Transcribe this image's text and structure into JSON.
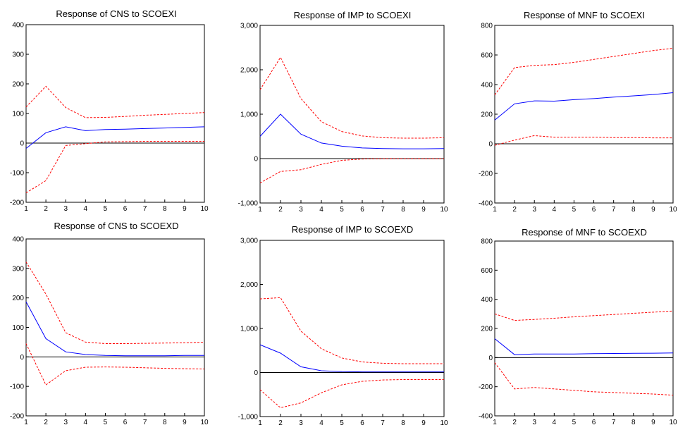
{
  "colors": {
    "response": "#0000ff",
    "band": "#ff0000",
    "axis": "#000000",
    "zero": "#000000"
  },
  "chart_data": [
    {
      "type": "line",
      "title": "Response of CNS to SCOEXI",
      "x": [
        1,
        2,
        3,
        4,
        5,
        6,
        7,
        8,
        9,
        10
      ],
      "ylim": [
        -200,
        400
      ],
      "yticks": [
        -200,
        -100,
        0,
        100,
        200,
        300,
        400
      ],
      "ytick_labels": [
        "-200",
        "-100",
        "0",
        "100",
        "200",
        "300",
        "400"
      ],
      "xtick_labels": [
        "1",
        "2",
        "3",
        "4",
        "5",
        "6",
        "7",
        "8",
        "9",
        "10"
      ],
      "series": [
        {
          "role": "response",
          "values": [
            -18,
            35,
            55,
            42,
            46,
            47,
            49,
            51,
            53,
            55
          ]
        },
        {
          "role": "upper",
          "values": [
            122,
            192,
            120,
            86,
            87,
            90,
            94,
            97,
            100,
            103
          ]
        },
        {
          "role": "lower",
          "values": [
            -168,
            -127,
            -8,
            -2,
            4,
            5,
            6,
            6,
            6,
            6
          ]
        }
      ]
    },
    {
      "type": "line",
      "title": "Response of IMP to SCOEXI",
      "x": [
        1,
        2,
        3,
        4,
        5,
        6,
        7,
        8,
        9,
        10
      ],
      "ylim": [
        -1000,
        3000
      ],
      "yticks": [
        -1000,
        0,
        1000,
        2000,
        3000
      ],
      "ytick_labels": [
        "-1,000",
        "0",
        "1,000",
        "2,000",
        "3,000"
      ],
      "xtick_labels": [
        "1",
        "2",
        "3",
        "4",
        "5",
        "6",
        "7",
        "8",
        "9",
        "10"
      ],
      "series": [
        {
          "role": "response",
          "values": [
            500,
            1000,
            550,
            350,
            280,
            240,
            225,
            220,
            220,
            225
          ]
        },
        {
          "role": "upper",
          "values": [
            1550,
            2280,
            1350,
            830,
            610,
            510,
            470,
            460,
            460,
            470
          ]
        },
        {
          "role": "lower",
          "values": [
            -550,
            -290,
            -250,
            -130,
            -40,
            -10,
            -5,
            -5,
            -5,
            -5
          ]
        }
      ]
    },
    {
      "type": "line",
      "title": "Response of MNF to SCOEXI",
      "x": [
        1,
        2,
        3,
        4,
        5,
        6,
        7,
        8,
        9,
        10
      ],
      "ylim": [
        -400,
        800
      ],
      "yticks": [
        -400,
        -200,
        0,
        200,
        400,
        600,
        800
      ],
      "ytick_labels": [
        "-400",
        "-200",
        "0",
        "200",
        "400",
        "600",
        "800"
      ],
      "xtick_labels": [
        "1",
        "2",
        "3",
        "4",
        "5",
        "6",
        "7",
        "8",
        "9",
        "10"
      ],
      "series": [
        {
          "role": "response",
          "values": [
            160,
            270,
            290,
            288,
            298,
            305,
            315,
            324,
            333,
            345
          ]
        },
        {
          "role": "upper",
          "values": [
            330,
            515,
            530,
            535,
            550,
            570,
            590,
            610,
            630,
            645
          ]
        },
        {
          "role": "lower",
          "values": [
            -10,
            25,
            55,
            45,
            45,
            45,
            42,
            42,
            40,
            40
          ]
        }
      ]
    },
    {
      "type": "line",
      "title": "Response of CNS to SCOEXD",
      "x": [
        1,
        2,
        3,
        4,
        5,
        6,
        7,
        8,
        9,
        10
      ],
      "ylim": [
        -200,
        400
      ],
      "yticks": [
        -200,
        -100,
        0,
        100,
        200,
        300,
        400
      ],
      "ytick_labels": [
        "-200",
        "-100",
        "0",
        "100",
        "200",
        "300",
        "400"
      ],
      "xtick_labels": [
        "1",
        "2",
        "3",
        "4",
        "5",
        "6",
        "7",
        "8",
        "9",
        "10"
      ],
      "series": [
        {
          "role": "response",
          "values": [
            187,
            62,
            17,
            8,
            5,
            4,
            4,
            4,
            5,
            5
          ]
        },
        {
          "role": "upper",
          "values": [
            322,
            213,
            82,
            50,
            45,
            45,
            46,
            47,
            48,
            50
          ]
        },
        {
          "role": "lower",
          "values": [
            45,
            -95,
            -47,
            -35,
            -34,
            -35,
            -37,
            -39,
            -40,
            -41
          ]
        }
      ]
    },
    {
      "type": "line",
      "title": "Response of IMP to SCOEXD",
      "x": [
        1,
        2,
        3,
        4,
        5,
        6,
        7,
        8,
        9,
        10
      ],
      "ylim": [
        -1000,
        3000
      ],
      "yticks": [
        -1000,
        0,
        1000,
        2000,
        3000
      ],
      "ytick_labels": [
        "-1,000",
        "0",
        "1,000",
        "2,000",
        "3,000"
      ],
      "xtick_labels": [
        "1",
        "2",
        "3",
        "4",
        "5",
        "6",
        "7",
        "8",
        "9",
        "10"
      ],
      "series": [
        {
          "role": "response",
          "values": [
            630,
            440,
            130,
            40,
            20,
            15,
            15,
            15,
            15,
            15
          ]
        },
        {
          "role": "upper",
          "values": [
            1670,
            1700,
            940,
            540,
            330,
            240,
            210,
            200,
            200,
            200
          ]
        },
        {
          "role": "lower",
          "values": [
            -390,
            -800,
            -690,
            -460,
            -280,
            -200,
            -170,
            -160,
            -160,
            -160
          ]
        }
      ]
    },
    {
      "type": "line",
      "title": "Response of MNF to SCOEXD",
      "x": [
        1,
        2,
        3,
        4,
        5,
        6,
        7,
        8,
        9,
        10
      ],
      "ylim": [
        -400,
        800
      ],
      "yticks": [
        -400,
        -200,
        0,
        200,
        400,
        600,
        800
      ],
      "ytick_labels": [
        "-400",
        "-200",
        "0",
        "200",
        "400",
        "600",
        "800"
      ],
      "xtick_labels": [
        "1",
        "2",
        "3",
        "4",
        "5",
        "6",
        "7",
        "8",
        "9",
        "10"
      ],
      "series": [
        {
          "role": "response",
          "values": [
            130,
            20,
            25,
            25,
            25,
            27,
            28,
            29,
            30,
            32
          ]
        },
        {
          "role": "upper",
          "values": [
            300,
            255,
            262,
            270,
            280,
            288,
            296,
            304,
            312,
            320
          ]
        },
        {
          "role": "lower",
          "values": [
            -35,
            -215,
            -205,
            -215,
            -225,
            -235,
            -240,
            -245,
            -250,
            -258
          ]
        }
      ]
    }
  ]
}
